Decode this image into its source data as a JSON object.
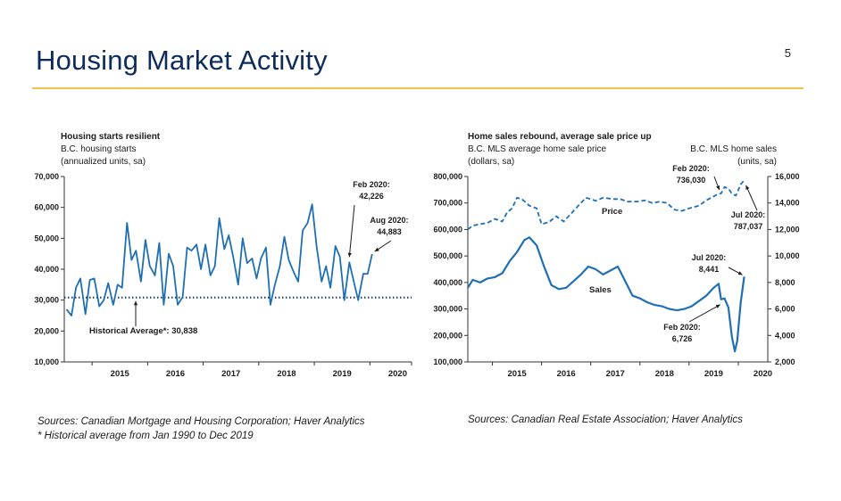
{
  "slide": {
    "title": "Housing Market Activity",
    "page_number": "5",
    "accent_color": "#f2c14e",
    "title_color": "#0d2c5c"
  },
  "sources": {
    "left_line1": "Sources: Canadian Mortgage and Housing Corporation; Haver Analytics",
    "left_line2": "* Historical average from Jan 1990 to Dec 2019",
    "right": "Sources: Canadian Real Estate Association; Haver Analytics"
  },
  "chart_data": [
    {
      "type": "line",
      "title": "Housing starts resilient",
      "subtitle_lines": [
        "B.C. housing starts",
        "(annualized units, sa)"
      ],
      "x_ticks": [
        "2015",
        "2016",
        "2017",
        "2018",
        "2019",
        "2020"
      ],
      "x_range": [
        2014.5,
        2020.75
      ],
      "ylim": [
        10000,
        70000
      ],
      "y_ticks": [
        10000,
        20000,
        30000,
        40000,
        50000,
        60000,
        70000
      ],
      "y_tick_labels": [
        "10,000",
        "20,000",
        "30,000",
        "40,000",
        "50,000",
        "60,000",
        "70,000"
      ],
      "line_color": "#1f6fb5",
      "avg_color": "#123a6b",
      "historical_average": 30838,
      "historical_average_label": "Historical Average*: 30,838",
      "series": [
        {
          "values": [
            [
              2014.54,
              27000
            ],
            [
              2014.63,
              25000
            ],
            [
              2014.71,
              34000
            ],
            [
              2014.79,
              37000
            ],
            [
              2014.88,
              25500
            ],
            [
              2014.96,
              36500
            ],
            [
              2015.04,
              37000
            ],
            [
              2015.13,
              28000
            ],
            [
              2015.21,
              30000
            ],
            [
              2015.29,
              35500
            ],
            [
              2015.38,
              28500
            ],
            [
              2015.46,
              35000
            ],
            [
              2015.54,
              34000
            ],
            [
              2015.63,
              55000
            ],
            [
              2015.71,
              43000
            ],
            [
              2015.79,
              46000
            ],
            [
              2015.88,
              36000
            ],
            [
              2015.96,
              49500
            ],
            [
              2016.04,
              41000
            ],
            [
              2016.13,
              38000
            ],
            [
              2016.21,
              48500
            ],
            [
              2016.29,
              28500
            ],
            [
              2016.38,
              45000
            ],
            [
              2016.46,
              41000
            ],
            [
              2016.54,
              28500
            ],
            [
              2016.63,
              31000
            ],
            [
              2016.71,
              47000
            ],
            [
              2016.79,
              46000
            ],
            [
              2016.88,
              48000
            ],
            [
              2016.96,
              40000
            ],
            [
              2017.04,
              48000
            ],
            [
              2017.13,
              38000
            ],
            [
              2017.21,
              41000
            ],
            [
              2017.29,
              56500
            ],
            [
              2017.38,
              46500
            ],
            [
              2017.46,
              51000
            ],
            [
              2017.54,
              44000
            ],
            [
              2017.63,
              35000
            ],
            [
              2017.71,
              50000
            ],
            [
              2017.79,
              42000
            ],
            [
              2017.88,
              43500
            ],
            [
              2017.96,
              37000
            ],
            [
              2018.04,
              43500
            ],
            [
              2018.13,
              47000
            ],
            [
              2018.21,
              28500
            ],
            [
              2018.29,
              35000
            ],
            [
              2018.38,
              41000
            ],
            [
              2018.46,
              50500
            ],
            [
              2018.54,
              43000
            ],
            [
              2018.63,
              39000
            ],
            [
              2018.71,
              36000
            ],
            [
              2018.79,
              52500
            ],
            [
              2018.88,
              55000
            ],
            [
              2018.96,
              61000
            ],
            [
              2019.04,
              47500
            ],
            [
              2019.13,
              36000
            ],
            [
              2019.21,
              41000
            ],
            [
              2019.29,
              34000
            ],
            [
              2019.38,
              47500
            ],
            [
              2019.46,
              44000
            ],
            [
              2019.54,
              30000
            ],
            [
              2019.63,
              42226
            ],
            [
              2019.71,
              36000
            ],
            [
              2019.79,
              30000
            ],
            [
              2019.88,
              38500
            ],
            [
              2019.96,
              38500
            ],
            [
              2020.04,
              44883
            ]
          ]
        }
      ],
      "annotations": [
        {
          "label": "Feb 2020:",
          "value_label": "42,226"
        },
        {
          "label": "Aug 2020:",
          "value_label": "44,883"
        }
      ]
    },
    {
      "type": "line",
      "title": "Home sales rebound, average sale price up",
      "left_axis_title_lines": [
        "B.C. MLS average home sale price",
        "(dollars, sa)"
      ],
      "right_axis_title_lines": [
        "B.C. MLS home sales",
        "(units, sa)"
      ],
      "x_ticks": [
        "2015",
        "2016",
        "2017",
        "2018",
        "2019",
        "2020"
      ],
      "x_range": [
        2014.5,
        2020.6
      ],
      "ylim_left": [
        100000,
        800000
      ],
      "y_left_ticks": [
        100000,
        200000,
        300000,
        400000,
        500000,
        600000,
        700000,
        800000
      ],
      "y_left_tick_labels": [
        "100,000",
        "200,000",
        "300,000",
        "400,000",
        "500,000",
        "600,000",
        "700,000",
        "800,000"
      ],
      "ylim_right": [
        2000,
        16000
      ],
      "y_right_ticks": [
        2000,
        4000,
        6000,
        8000,
        10000,
        12000,
        14000,
        16000
      ],
      "y_right_tick_labels": [
        "2,000",
        "4,000",
        "6,000",
        "8,000",
        "10,000",
        "12,000",
        "14,000",
        "16,000"
      ],
      "line_color": "#1f6fb5",
      "series": [
        {
          "name": "Price",
          "axis": "left",
          "style": "dashed",
          "values": [
            [
              2014.5,
              600000
            ],
            [
              2014.6,
              615000
            ],
            [
              2014.75,
              620000
            ],
            [
              2014.9,
              625000
            ],
            [
              2015.05,
              640000
            ],
            [
              2015.2,
              630000
            ],
            [
              2015.3,
              665000
            ],
            [
              2015.4,
              680000
            ],
            [
              2015.5,
              720000
            ],
            [
              2015.6,
              715000
            ],
            [
              2015.75,
              690000
            ],
            [
              2015.9,
              680000
            ],
            [
              2016.0,
              620000
            ],
            [
              2016.15,
              628000
            ],
            [
              2016.3,
              650000
            ],
            [
              2016.45,
              630000
            ],
            [
              2016.6,
              660000
            ],
            [
              2016.75,
              690000
            ],
            [
              2016.9,
              720000
            ],
            [
              2017.0,
              715000
            ],
            [
              2017.1,
              708000
            ],
            [
              2017.25,
              720000
            ],
            [
              2017.45,
              715000
            ],
            [
              2017.6,
              715000
            ],
            [
              2017.75,
              705000
            ],
            [
              2017.95,
              705000
            ],
            [
              2018.1,
              710000
            ],
            [
              2018.25,
              700000
            ],
            [
              2018.4,
              705000
            ],
            [
              2018.55,
              700000
            ],
            [
              2018.7,
              675000
            ],
            [
              2018.85,
              670000
            ],
            [
              2019.0,
              680000
            ],
            [
              2019.2,
              690000
            ],
            [
              2019.35,
              710000
            ],
            [
              2019.5,
              725000
            ],
            [
              2019.6,
              735000
            ],
            [
              2019.65,
              736030
            ],
            [
              2019.72,
              760000
            ],
            [
              2019.8,
              755000
            ],
            [
              2019.87,
              735000
            ],
            [
              2019.95,
              728000
            ],
            [
              2020.05,
              770000
            ],
            [
              2020.12,
              787037
            ]
          ]
        },
        {
          "name": "Sales",
          "axis": "right",
          "style": "solid",
          "values": [
            [
              2014.5,
              7600
            ],
            [
              2014.6,
              8200
            ],
            [
              2014.75,
              8000
            ],
            [
              2014.9,
              8300
            ],
            [
              2015.05,
              8400
            ],
            [
              2015.2,
              8700
            ],
            [
              2015.35,
              9600
            ],
            [
              2015.5,
              10300
            ],
            [
              2015.65,
              11200
            ],
            [
              2015.75,
              11400
            ],
            [
              2015.9,
              10800
            ],
            [
              2016.05,
              9200
            ],
            [
              2016.2,
              7800
            ],
            [
              2016.35,
              7500
            ],
            [
              2016.5,
              7600
            ],
            [
              2016.65,
              8100
            ],
            [
              2016.8,
              8600
            ],
            [
              2016.95,
              9200
            ],
            [
              2017.1,
              9000
            ],
            [
              2017.25,
              8600
            ],
            [
              2017.4,
              8900
            ],
            [
              2017.55,
              9200
            ],
            [
              2017.7,
              8100
            ],
            [
              2017.85,
              7000
            ],
            [
              2018.0,
              6800
            ],
            [
              2018.15,
              6500
            ],
            [
              2018.3,
              6300
            ],
            [
              2018.45,
              6200
            ],
            [
              2018.6,
              6000
            ],
            [
              2018.75,
              5900
            ],
            [
              2018.9,
              6000
            ],
            [
              2019.05,
              6200
            ],
            [
              2019.2,
              6600
            ],
            [
              2019.35,
              7000
            ],
            [
              2019.5,
              7600
            ],
            [
              2019.6,
              7900
            ],
            [
              2019.65,
              6726
            ],
            [
              2019.72,
              6800
            ],
            [
              2019.8,
              6100
            ],
            [
              2019.87,
              3900
            ],
            [
              2019.93,
              2800
            ],
            [
              2019.98,
              3600
            ],
            [
              2020.05,
              6500
            ],
            [
              2020.12,
              8441
            ]
          ]
        }
      ],
      "annotations": [
        {
          "label": "Feb 2020:",
          "value_label": "736,030"
        },
        {
          "label": "Jul 2020:",
          "value_label": "787,037"
        },
        {
          "label": "Jul 2020:",
          "value_label": "8,441"
        },
        {
          "label": "Feb 2020:",
          "value_label": "6,726"
        }
      ]
    }
  ]
}
